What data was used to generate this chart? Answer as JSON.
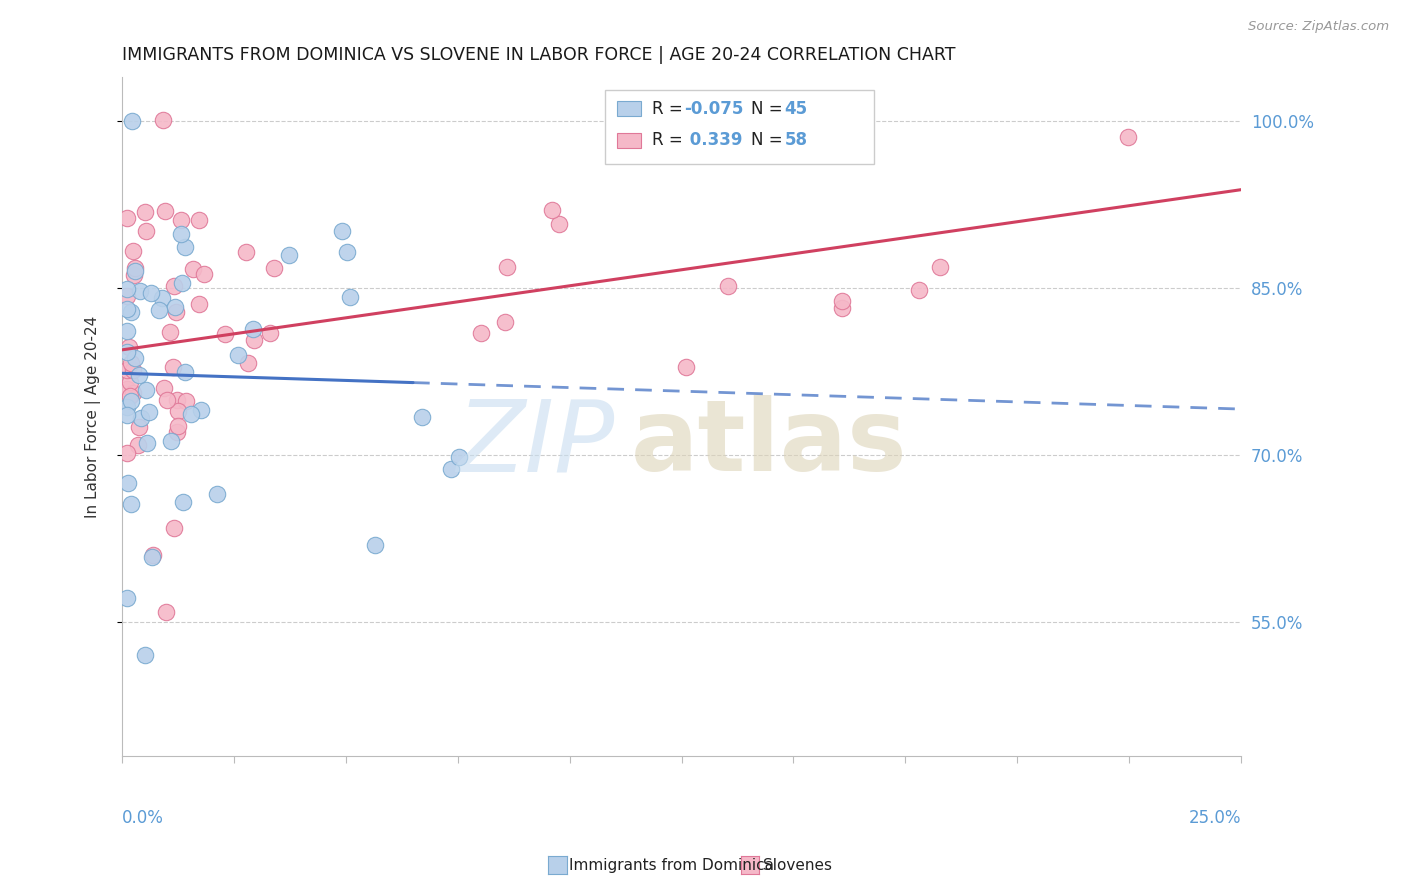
{
  "title": "IMMIGRANTS FROM DOMINICA VS SLOVENE IN LABOR FORCE | AGE 20-24 CORRELATION CHART",
  "source": "Source: ZipAtlas.com",
  "ylabel": "In Labor Force | Age 20-24",
  "blue_label": "Immigrants from Dominica",
  "pink_label": "Slovenes",
  "xmin": 0.0,
  "xmax": 0.25,
  "ymin": 0.43,
  "ymax": 1.04,
  "blue_R": -0.075,
  "blue_N": 45,
  "pink_R": 0.339,
  "pink_N": 58,
  "ytick_values": [
    0.55,
    0.7,
    0.85,
    1.0
  ],
  "ytick_labels": [
    "55.0%",
    "70.0%",
    "85.0%",
    "100.0%"
  ],
  "xtick_left": "0.0%",
  "xtick_right": "25.0%",
  "blue_face": "#b8d0ea",
  "blue_edge": "#7aaad0",
  "pink_face": "#f5b8c8",
  "pink_edge": "#e07898",
  "blue_line": "#4472c4",
  "pink_line": "#d04060",
  "axis_color": "#5b9bd5",
  "grid_color": "#cccccc",
  "title_color": "#1a1a1a",
  "source_color": "#999999"
}
